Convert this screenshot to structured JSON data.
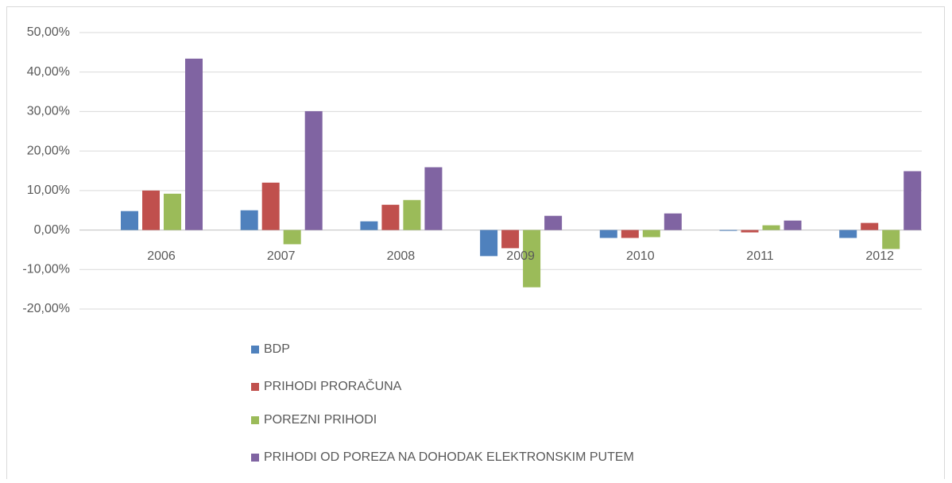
{
  "chart_data": {
    "type": "bar",
    "categories": [
      "2006",
      "2007",
      "2008",
      "2009",
      "2010",
      "2011",
      "2012"
    ],
    "series": [
      {
        "name": "BDP",
        "color": "#4f81bd",
        "values": [
          4.8,
          5.0,
          2.2,
          -6.6,
          -2.0,
          -0.2,
          -2.0
        ]
      },
      {
        "name": "PRIHODI PRORAČUNA",
        "color": "#c0504d",
        "values": [
          10.0,
          12.0,
          6.4,
          -4.6,
          -2.0,
          -0.6,
          1.8
        ]
      },
      {
        "name": "POREZNI PRIHODI",
        "color": "#9bbb59",
        "values": [
          9.2,
          -3.6,
          7.6,
          -14.5,
          -1.8,
          1.2,
          -4.8
        ]
      },
      {
        "name": "PRIHODI OD POREZA NA DOHODAK ELEKTRONSKIM PUTEM",
        "color": "#8064a2",
        "values": [
          43.4,
          30.1,
          15.9,
          3.6,
          4.2,
          2.4,
          14.9
        ]
      }
    ],
    "ylim": [
      -20,
      50
    ],
    "yticks": [
      {
        "value": -20,
        "label": "-20,00%"
      },
      {
        "value": -10,
        "label": "-10,00%"
      },
      {
        "value": 0,
        "label": "0,00%"
      },
      {
        "value": 10,
        "label": "10,00%"
      },
      {
        "value": 20,
        "label": "20,00%"
      },
      {
        "value": 30,
        "label": "30,00%"
      },
      {
        "value": 40,
        "label": "40,00%"
      },
      {
        "value": 50,
        "label": "50,00%"
      }
    ],
    "grid": true,
    "legend": "bottom"
  }
}
